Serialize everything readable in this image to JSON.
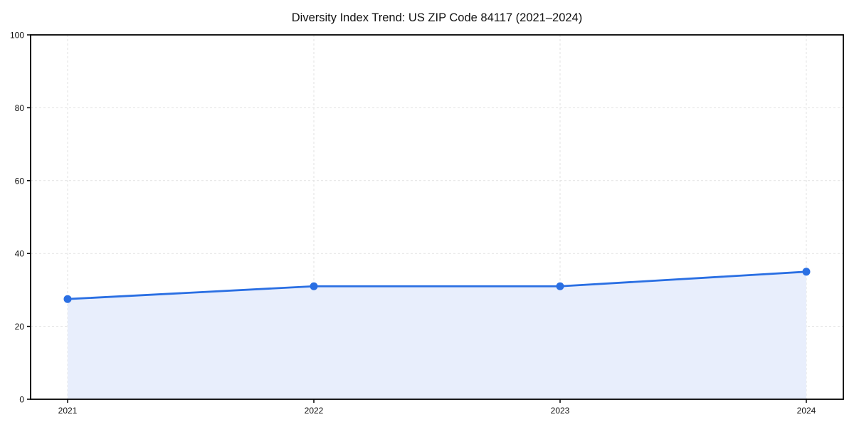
{
  "chart_data": {
    "type": "area",
    "title": "Diversity Index Trend: US ZIP Code 84117 (2021–2024)",
    "series_name": "Diversity Index",
    "categories": [
      "2021",
      "2022",
      "2023",
      "2024"
    ],
    "values": [
      27.5,
      31,
      31,
      35
    ],
    "xlabel": "",
    "ylabel": "",
    "ylim": [
      0,
      100
    ],
    "yticks": [
      0,
      20,
      40,
      60,
      80,
      100
    ],
    "grid": true,
    "grid_style": "dashed",
    "legend_position": "none",
    "colors": {
      "line": "#2a6fe3",
      "marker": "#2a6fe3",
      "area_fill": "#e8eefc",
      "grid": "#e2e2e2",
      "axis": "#000000",
      "text": "#111111"
    }
  }
}
